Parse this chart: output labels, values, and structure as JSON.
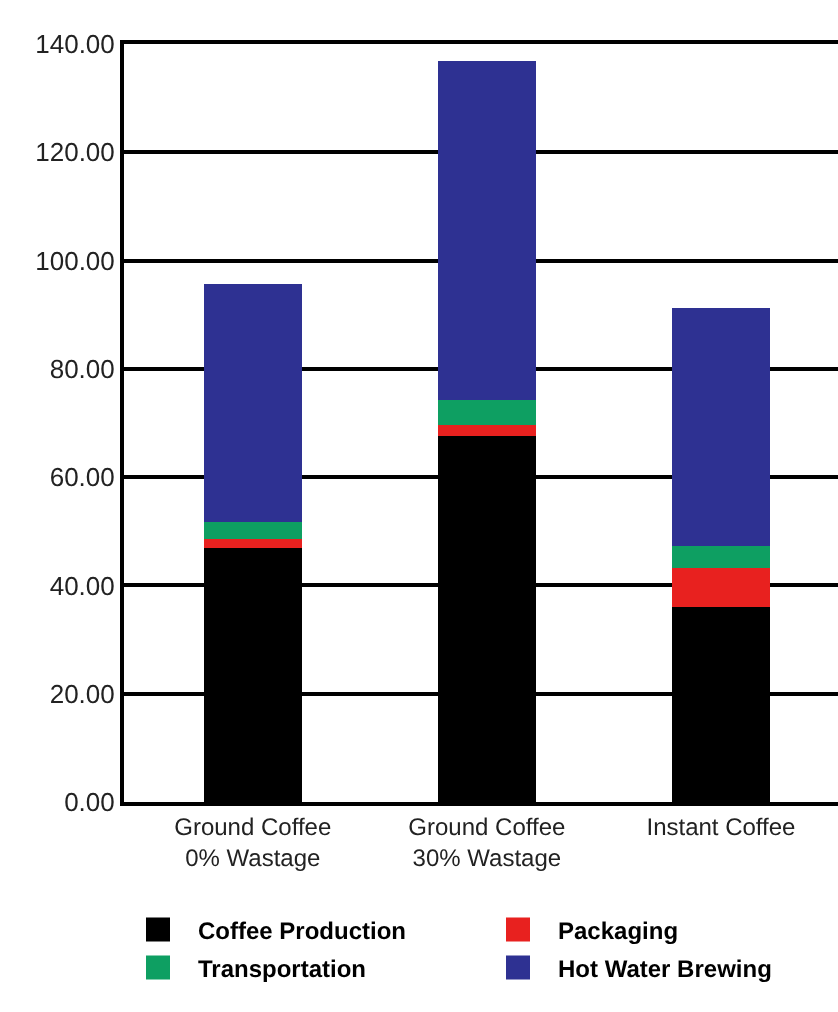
{
  "chart_data": {
    "type": "bar",
    "stacked": true,
    "categories": [
      "Ground Coffee\n0% Wastage",
      "Ground Coffee\n30% Wastage",
      "Instant Coffee"
    ],
    "series": [
      {
        "name": "Coffee Production",
        "color": "#000000",
        "values": [
          47.0,
          67.6,
          36.1
        ]
      },
      {
        "name": "Packaging",
        "color": "#e8211f",
        "values": [
          1.5,
          2.1,
          7.2
        ]
      },
      {
        "name": "Transportation",
        "color": "#0e9f62",
        "values": [
          3.3,
          4.6,
          4.0
        ]
      },
      {
        "name": "Hot Water Brewing",
        "color": "#2e3192",
        "values": [
          43.9,
          62.5,
          44.0
        ]
      }
    ],
    "ylim": [
      0,
      140
    ],
    "yticks": [
      {
        "value": 0,
        "label": "0.00"
      },
      {
        "value": 20,
        "label": "20.00"
      },
      {
        "value": 40,
        "label": "40.00"
      },
      {
        "value": 60,
        "label": "60.00"
      },
      {
        "value": 80,
        "label": "80.00"
      },
      {
        "value": 100,
        "label": "100.00"
      },
      {
        "value": 120,
        "label": "120.00"
      },
      {
        "value": 140,
        "label": "140.00"
      }
    ],
    "grid": "y",
    "legend": "bottom"
  }
}
